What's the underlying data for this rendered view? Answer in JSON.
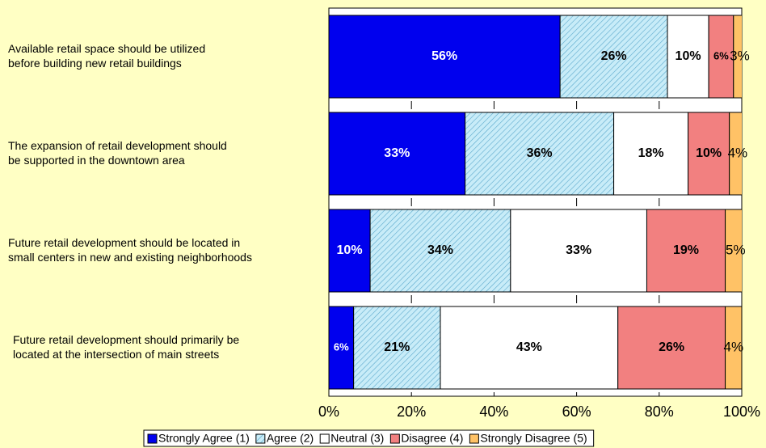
{
  "chart_data": {
    "type": "stacked_barh",
    "categories": [
      "Available retail space should be utilized\nbefore building new retail buildings",
      "The expansion of retail development should\nbe supported in the downtown area",
      "Future retail development should be located in\nsmall centers in new and existing neighborhoods",
      "Future retail development should primarily be\nlocated at the intersection of main streets"
    ],
    "series": [
      {
        "name": "Strongly Agree (1)",
        "color": "#0000ee",
        "values": [
          56,
          33,
          10,
          6
        ],
        "value_labels": [
          "56%",
          "33%",
          "10%",
          "6%"
        ]
      },
      {
        "name": "Agree (2)",
        "color": "#c8ecf8",
        "hatch": true,
        "values": [
          26,
          36,
          34,
          21
        ],
        "value_labels": [
          "26%",
          "36%",
          "34%",
          "21%"
        ]
      },
      {
        "name": "Neutral (3)",
        "color": "#ffffff",
        "values": [
          10,
          18,
          33,
          43
        ],
        "value_labels": [
          "10%",
          "18%",
          "33%",
          "43%"
        ]
      },
      {
        "name": "Disagree (4)",
        "color": "#f28080",
        "values": [
          6,
          10,
          19,
          26
        ],
        "value_labels": [
          "6%",
          "10%",
          "19%",
          "26%"
        ]
      },
      {
        "name": "Strongly Disagree (5)",
        "color": "#ffc266",
        "values": [
          3,
          4,
          5,
          4
        ],
        "value_labels": [
          "3%",
          "4%",
          "5%",
          "4%"
        ]
      }
    ],
    "xlim": [
      0,
      100
    ],
    "xticks": [
      {
        "value": 0,
        "label": "0%"
      },
      {
        "value": 20,
        "label": "20%"
      },
      {
        "value": 40,
        "label": "40%"
      },
      {
        "value": 60,
        "label": "60%"
      },
      {
        "value": 80,
        "label": "80%"
      },
      {
        "value": 100,
        "label": "100%"
      }
    ],
    "legend": "bottom"
  }
}
